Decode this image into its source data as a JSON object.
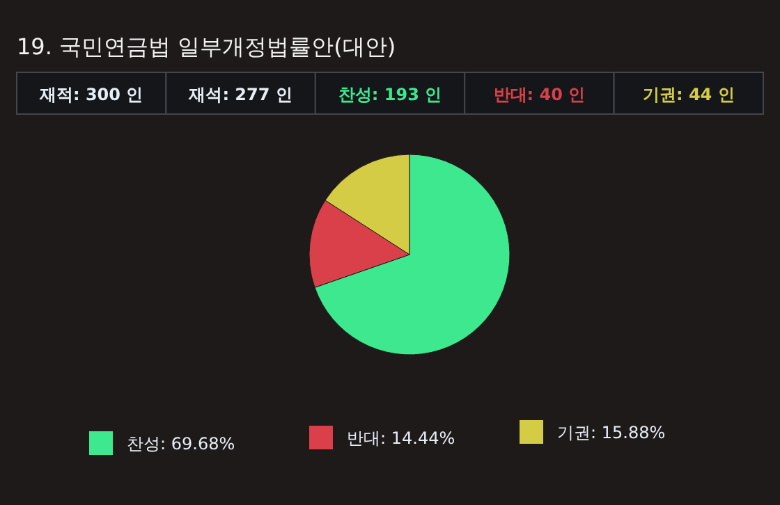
{
  "chart_data": {
    "type": "pie",
    "title": "19. 국민연금법 일부개정법률안(대안)",
    "annotations": [
      "재적: 300 인",
      "재석: 277 인",
      "찬성: 193 인",
      "반대: 40 인",
      "기권: 44 인"
    ],
    "categories": [
      "찬성: 69.68%",
      "반대: 14.44%",
      "기권: 15.88%"
    ],
    "values": [
      69.68,
      14.44,
      15.88
    ],
    "colors": [
      "#3de88f",
      "#d9404a",
      "#d4cc45"
    ],
    "legend": "bottom"
  }
}
